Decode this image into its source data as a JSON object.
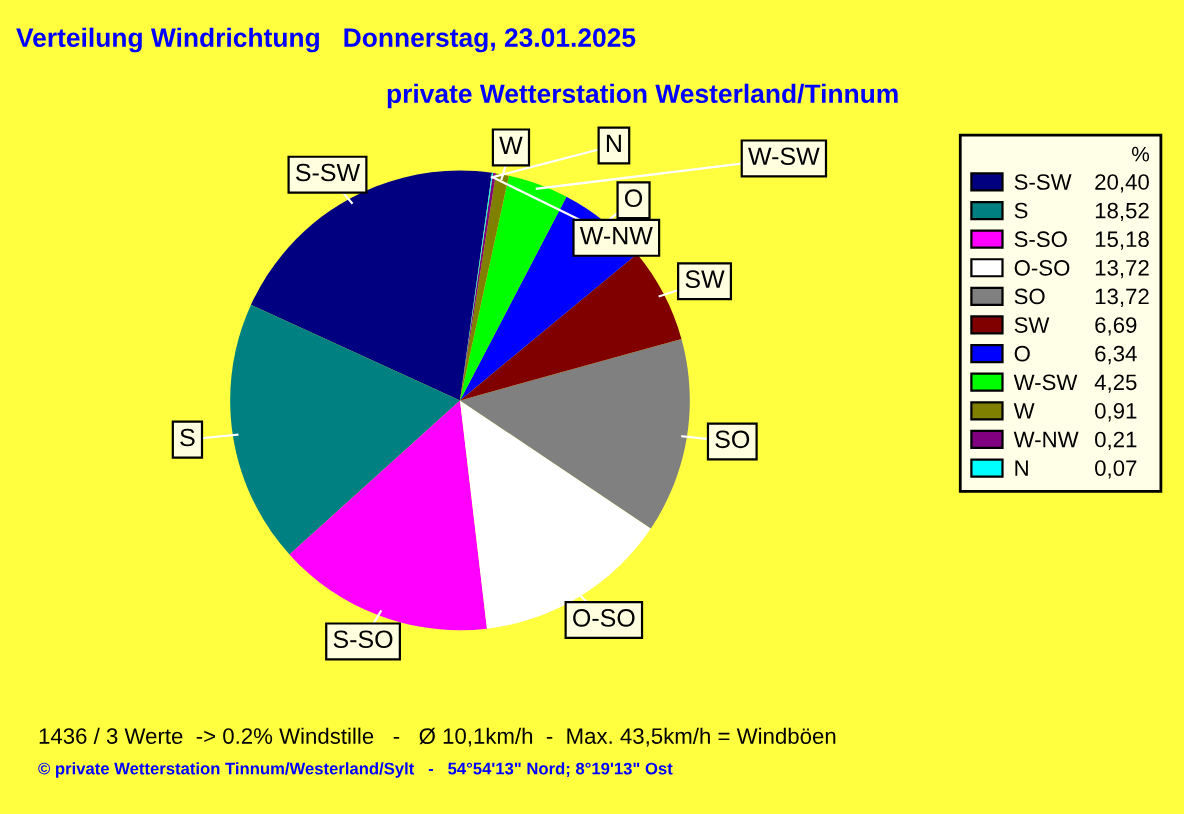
{
  "chart_data": {
    "type": "pie",
    "title": "Verteilung Windrichtung   Donnerstag, 23.01.2025",
    "subtitle": "private Wetterstation Westerland/Tinnum",
    "categories": [
      "S-SW",
      "S",
      "S-SO",
      "O-SO",
      "SO",
      "SW",
      "O",
      "W-SW",
      "W",
      "W-NW",
      "N"
    ],
    "values": [
      20.4,
      18.52,
      15.18,
      13.72,
      13.72,
      6.69,
      6.34,
      4.25,
      0.91,
      0.21,
      0.07
    ],
    "value_labels": [
      "20,40",
      "18,52",
      "15,18",
      "13,72",
      "13,72",
      "6,69",
      "6,34",
      "4,25",
      "0,91",
      "0,21",
      "0,07"
    ],
    "colors": [
      "#000080",
      "#008080",
      "#ff00ff",
      "#ffffff",
      "#808080",
      "#800000",
      "#0000ff",
      "#00ff00",
      "#808000",
      "#800080",
      "#00ffff"
    ],
    "legend": "right",
    "legend_title": "%",
    "annotations": [
      "1436 / 3 Werte  -> 0.2% Windstille   -   Ø 10,1km/h  -  Max. 43,5km/h = Windböen",
      "© private Wetterstation Tinnum/Westerland/Sylt   -   54°54'13\" Nord; 8°19'13\" Ost"
    ]
  }
}
